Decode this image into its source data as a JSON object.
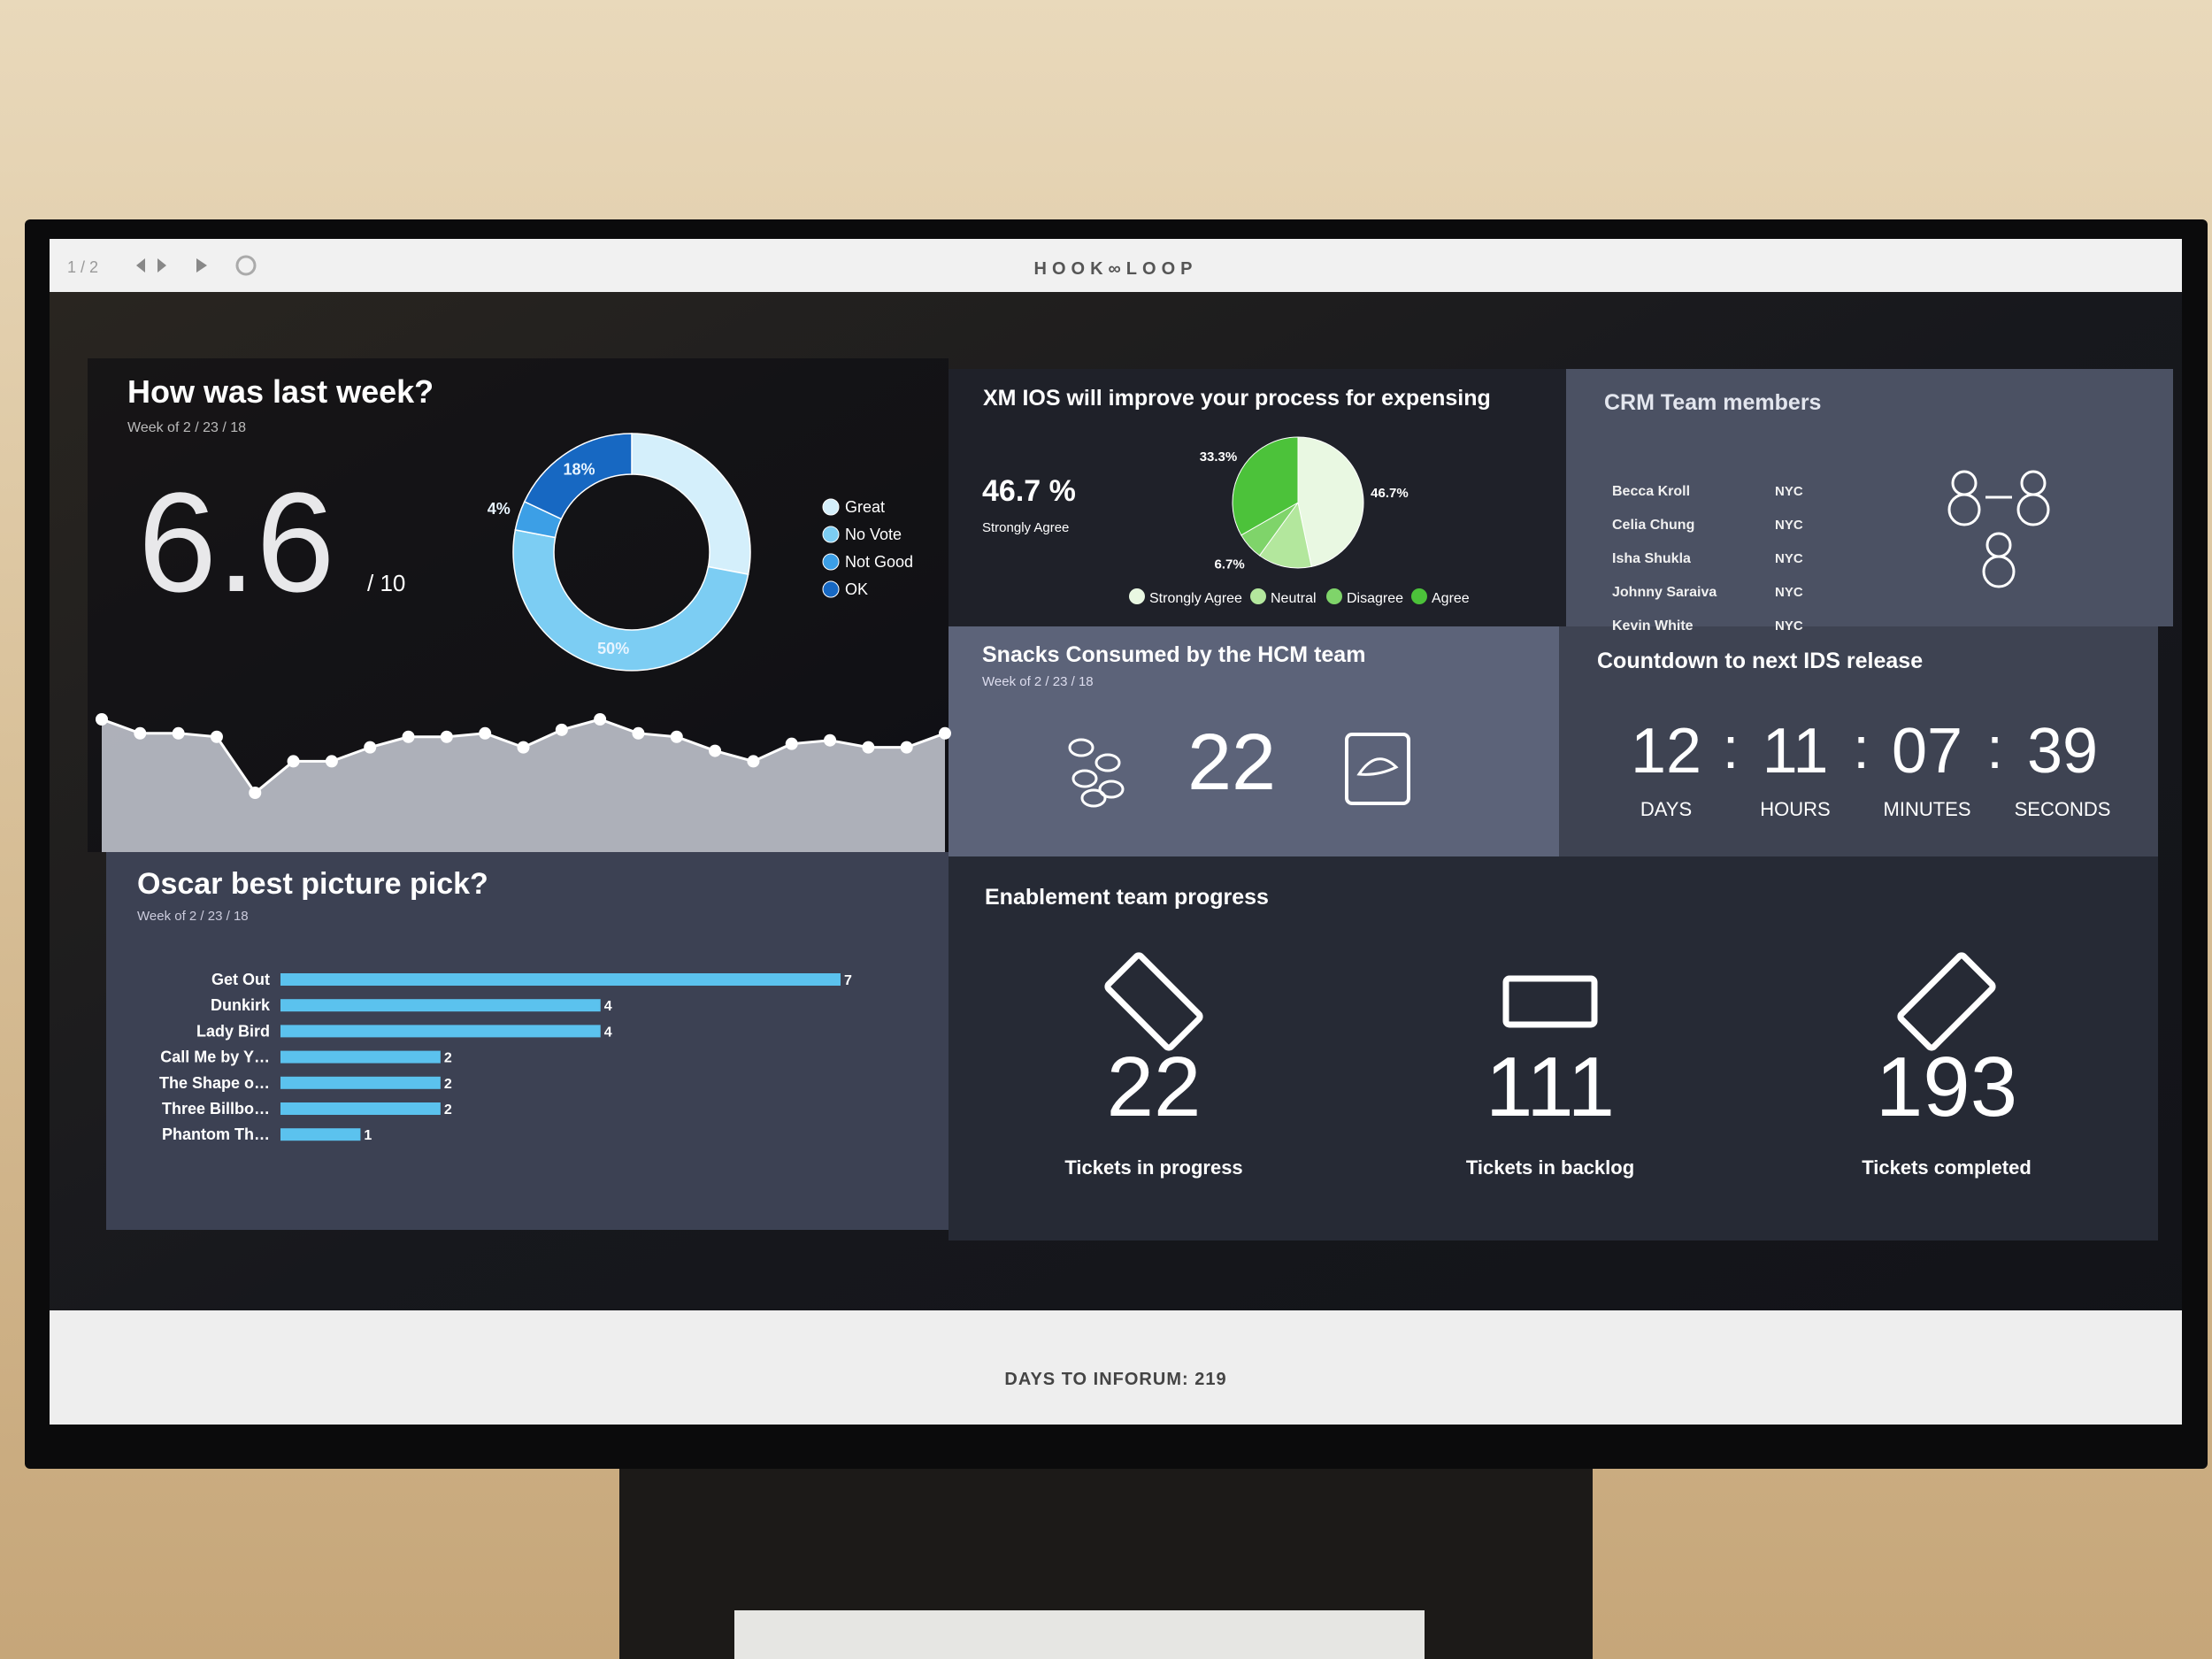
{
  "toolbar": {
    "page": "1 / 2",
    "brand": "HOOK∞LOOP"
  },
  "last_week": {
    "title": "How was last week?",
    "subtitle": "Week of 2 / 23 / 18",
    "score": "6.6",
    "scale": "/ 10"
  },
  "survey": {
    "title": "XM IOS will improve your process for expensing",
    "stat": "46.7 %",
    "stat_label": "Strongly Agree"
  },
  "crm": {
    "title": "CRM Team members",
    "members": [
      [
        "Becca Kroll",
        "NYC"
      ],
      [
        "Celia Chung",
        "NYC"
      ],
      [
        "Isha Shukla",
        "NYC"
      ],
      [
        "Johnny Saraiva",
        "NYC"
      ],
      [
        "Kevin White",
        "NYC"
      ]
    ]
  },
  "snacks": {
    "title": "Snacks Consumed by the HCM team",
    "subtitle": "Week of 2 / 23 / 18",
    "count": "22"
  },
  "countdown": {
    "title": "Countdown to next IDS release",
    "separator": ":",
    "units": [
      {
        "value": "12",
        "label": "DAYS"
      },
      {
        "value": "11",
        "label": "HOURS"
      },
      {
        "value": "07",
        "label": "MINUTES"
      },
      {
        "value": "39",
        "label": "SECONDS"
      }
    ]
  },
  "oscar": {
    "title": "Oscar best picture pick?",
    "subtitle": "Week of 2 / 23 / 18"
  },
  "enablement": {
    "title": "Enablement team progress",
    "stats": [
      {
        "value": "22",
        "label": "Tickets in progress"
      },
      {
        "value": "111",
        "label": "Tickets in backlog"
      },
      {
        "value": "193",
        "label": "Tickets completed"
      }
    ]
  },
  "footer": {
    "text": "DAYS TO INFORUM: 219"
  },
  "chart_data": [
    {
      "type": "donut",
      "categories": [
        "Great",
        "No Vote",
        "Not Good",
        "OK"
      ],
      "values": [
        28,
        50,
        4,
        18
      ],
      "value_labels": [
        null,
        "50%",
        "4%",
        "18%"
      ],
      "colors": [
        "#d4effb",
        "#7ccdf3",
        "#3c9fe6",
        "#1768c2"
      ]
    },
    {
      "type": "area",
      "values": [
        7.4,
        7.0,
        7.0,
        6.9,
        5.3,
        6.2,
        6.2,
        6.6,
        6.9,
        6.9,
        7.0,
        6.6,
        7.1,
        7.4,
        7.0,
        6.9,
        6.5,
        6.2,
        6.7,
        6.8,
        6.6,
        6.6,
        7.0
      ],
      "color": "#c9ccd6"
    },
    {
      "type": "pie",
      "categories": [
        "Strongly Agree",
        "Neutral",
        "Disagree",
        "Agree"
      ],
      "values": [
        46.7,
        13.3,
        6.7,
        33.3
      ],
      "value_labels": [
        "46.7%",
        null,
        "6.7%",
        "33.3%"
      ],
      "colors": [
        "#e9f8e2",
        "#b3e79d",
        "#7fd46a",
        "#4cc23a"
      ]
    },
    {
      "type": "hbar",
      "categories": [
        "Get Out",
        "Dunkirk",
        "Lady Bird",
        "Call Me by Y…",
        "The Shape o…",
        "Three Billbo…",
        "Phantom Th…"
      ],
      "values": [
        7,
        4,
        4,
        2,
        2,
        2,
        1
      ],
      "color": "#5bc2ee"
    }
  ]
}
